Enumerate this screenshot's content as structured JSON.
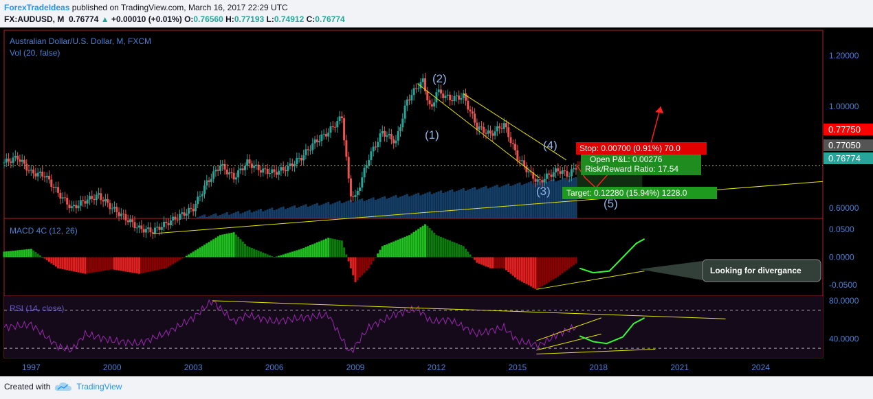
{
  "header": {
    "publisher": "ForexTradeIdeas",
    "published_text": "published on TradingView.com, March 16, 2017 22:29 UTC",
    "symbol": "FX:AUDUSD, M",
    "last": "0.76774",
    "change": "+0.00010 (+0.01%)",
    "o_label": "O:",
    "o": "0.76560",
    "h_label": "H:",
    "h": "0.77193",
    "l_label": "L:",
    "l": "0.74912",
    "c_label": "C:",
    "c": "0.76774"
  },
  "chart_data": {
    "type": "candlestick",
    "title": "Australian Dollar/U.S. Dollar, M, FXCM",
    "volume_label": "Vol (20, false)",
    "price_axis": {
      "ticks": [
        "1.20000",
        "1.00000",
        "0.60000"
      ],
      "range": [
        0.56,
        1.3
      ]
    },
    "price_badges": [
      {
        "label": "0.77750",
        "color": "#ff0000"
      },
      {
        "label": "0.77050",
        "color": "#555555"
      },
      {
        "label": "0.76774",
        "color": "#26a69a"
      }
    ],
    "x_axis": {
      "ticks": [
        "1997",
        "2000",
        "2003",
        "2006",
        "2009",
        "2012",
        "2015",
        "2018",
        "2021",
        "2024"
      ]
    },
    "price_series": [
      [
        1996.0,
        0.78
      ],
      [
        1996.5,
        0.8
      ],
      [
        1997.0,
        0.74
      ],
      [
        1997.5,
        0.73
      ],
      [
        1998.0,
        0.66
      ],
      [
        1998.5,
        0.6
      ],
      [
        1999.0,
        0.63
      ],
      [
        1999.5,
        0.65
      ],
      [
        2000.0,
        0.6
      ],
      [
        2000.5,
        0.56
      ],
      [
        2001.0,
        0.52
      ],
      [
        2001.5,
        0.51
      ],
      [
        2002.0,
        0.54
      ],
      [
        2002.5,
        0.57
      ],
      [
        2003.0,
        0.6
      ],
      [
        2003.5,
        0.7
      ],
      [
        2004.0,
        0.77
      ],
      [
        2004.5,
        0.72
      ],
      [
        2005.0,
        0.78
      ],
      [
        2005.5,
        0.75
      ],
      [
        2006.0,
        0.74
      ],
      [
        2006.5,
        0.76
      ],
      [
        2007.0,
        0.8
      ],
      [
        2007.5,
        0.86
      ],
      [
        2008.0,
        0.9
      ],
      [
        2008.5,
        0.96
      ],
      [
        2008.8,
        0.66
      ],
      [
        2009.0,
        0.64
      ],
      [
        2009.5,
        0.8
      ],
      [
        2010.0,
        0.9
      ],
      [
        2010.5,
        0.86
      ],
      [
        2010.9,
        1.02
      ],
      [
        2011.3,
        1.08
      ],
      [
        2011.5,
        1.1
      ],
      [
        2011.8,
        0.98
      ],
      [
        2012.0,
        1.06
      ],
      [
        2012.5,
        1.03
      ],
      [
        2013.0,
        1.04
      ],
      [
        2013.5,
        0.92
      ],
      [
        2014.0,
        0.89
      ],
      [
        2014.5,
        0.93
      ],
      [
        2015.0,
        0.8
      ],
      [
        2015.5,
        0.73
      ],
      [
        2015.8,
        0.7
      ],
      [
        2016.0,
        0.72
      ],
      [
        2016.5,
        0.75
      ],
      [
        2016.9,
        0.73
      ],
      [
        2017.2,
        0.768
      ]
    ],
    "wave_labels": [
      "(1)",
      "(2)",
      "(3)",
      "(4)",
      "(5)"
    ],
    "position": {
      "stop": "Stop: 0.00700 (0.91%) 70.0",
      "open_pnl": "Open P&L: 0.00276",
      "risk_reward": "Risk/Reward Ratio: 17.54",
      "target": "Target: 0.12280 (15.94%) 1228.0"
    },
    "macd": {
      "label": "MACD 4C (12, 26)",
      "ticks": [
        "0.0500",
        "0.0000",
        "-0.0500"
      ],
      "range": [
        -0.07,
        0.07
      ],
      "series": [
        [
          1996.0,
          0.01
        ],
        [
          1997.0,
          0.015
        ],
        [
          1998.0,
          -0.02
        ],
        [
          1999.0,
          -0.03
        ],
        [
          2000.0,
          -0.022
        ],
        [
          2001.0,
          -0.03
        ],
        [
          2002.0,
          -0.02
        ],
        [
          2003.0,
          0.01
        ],
        [
          2004.0,
          0.04
        ],
        [
          2004.5,
          0.045
        ],
        [
          2005.0,
          0.02
        ],
        [
          2006.0,
          0.0
        ],
        [
          2007.0,
          0.015
        ],
        [
          2008.0,
          0.035
        ],
        [
          2008.5,
          0.03
        ],
        [
          2009.0,
          -0.045
        ],
        [
          2009.5,
          -0.02
        ],
        [
          2010.0,
          0.02
        ],
        [
          2011.0,
          0.04
        ],
        [
          2011.6,
          0.06
        ],
        [
          2012.0,
          0.04
        ],
        [
          2013.0,
          0.02
        ],
        [
          2013.5,
          -0.01
        ],
        [
          2014.0,
          -0.02
        ],
        [
          2014.5,
          -0.02
        ],
        [
          2015.0,
          -0.04
        ],
        [
          2015.7,
          -0.058
        ],
        [
          2016.0,
          -0.05
        ],
        [
          2016.5,
          -0.035
        ],
        [
          2017.2,
          -0.01
        ]
      ]
    },
    "rsi": {
      "label": "RSI (14, close)",
      "ticks": [
        "80.0000",
        "40.0000"
      ],
      "range": [
        20,
        85
      ],
      "bands": [
        70,
        30
      ],
      "series": [
        [
          1996.0,
          52
        ],
        [
          1997.0,
          55
        ],
        [
          1998.0,
          32
        ],
        [
          1998.5,
          28
        ],
        [
          1999.0,
          45
        ],
        [
          2000.0,
          38
        ],
        [
          2001.0,
          35
        ],
        [
          2002.0,
          46
        ],
        [
          2003.0,
          62
        ],
        [
          2003.7,
          80
        ],
        [
          2004.5,
          58
        ],
        [
          2005.0,
          65
        ],
        [
          2006.0,
          58
        ],
        [
          2007.0,
          62
        ],
        [
          2008.0,
          65
        ],
        [
          2008.8,
          25
        ],
        [
          2009.5,
          52
        ],
        [
          2010.5,
          66
        ],
        [
          2011.3,
          72
        ],
        [
          2011.8,
          58
        ],
        [
          2012.5,
          60
        ],
        [
          2013.5,
          45
        ],
        [
          2014.5,
          52
        ],
        [
          2015.0,
          38
        ],
        [
          2015.8,
          33
        ],
        [
          2016.5,
          45
        ],
        [
          2017.2,
          53
        ]
      ]
    },
    "callout": "Looking for divergance"
  },
  "footer": {
    "created_with": "Created with",
    "brand": "TradingView"
  },
  "colors": {
    "background": "#000000",
    "up": "#26a69a",
    "down": "#ef5350",
    "border": "#b22222",
    "axis_text": "#4a7fd4",
    "trend": "#e6e600"
  }
}
